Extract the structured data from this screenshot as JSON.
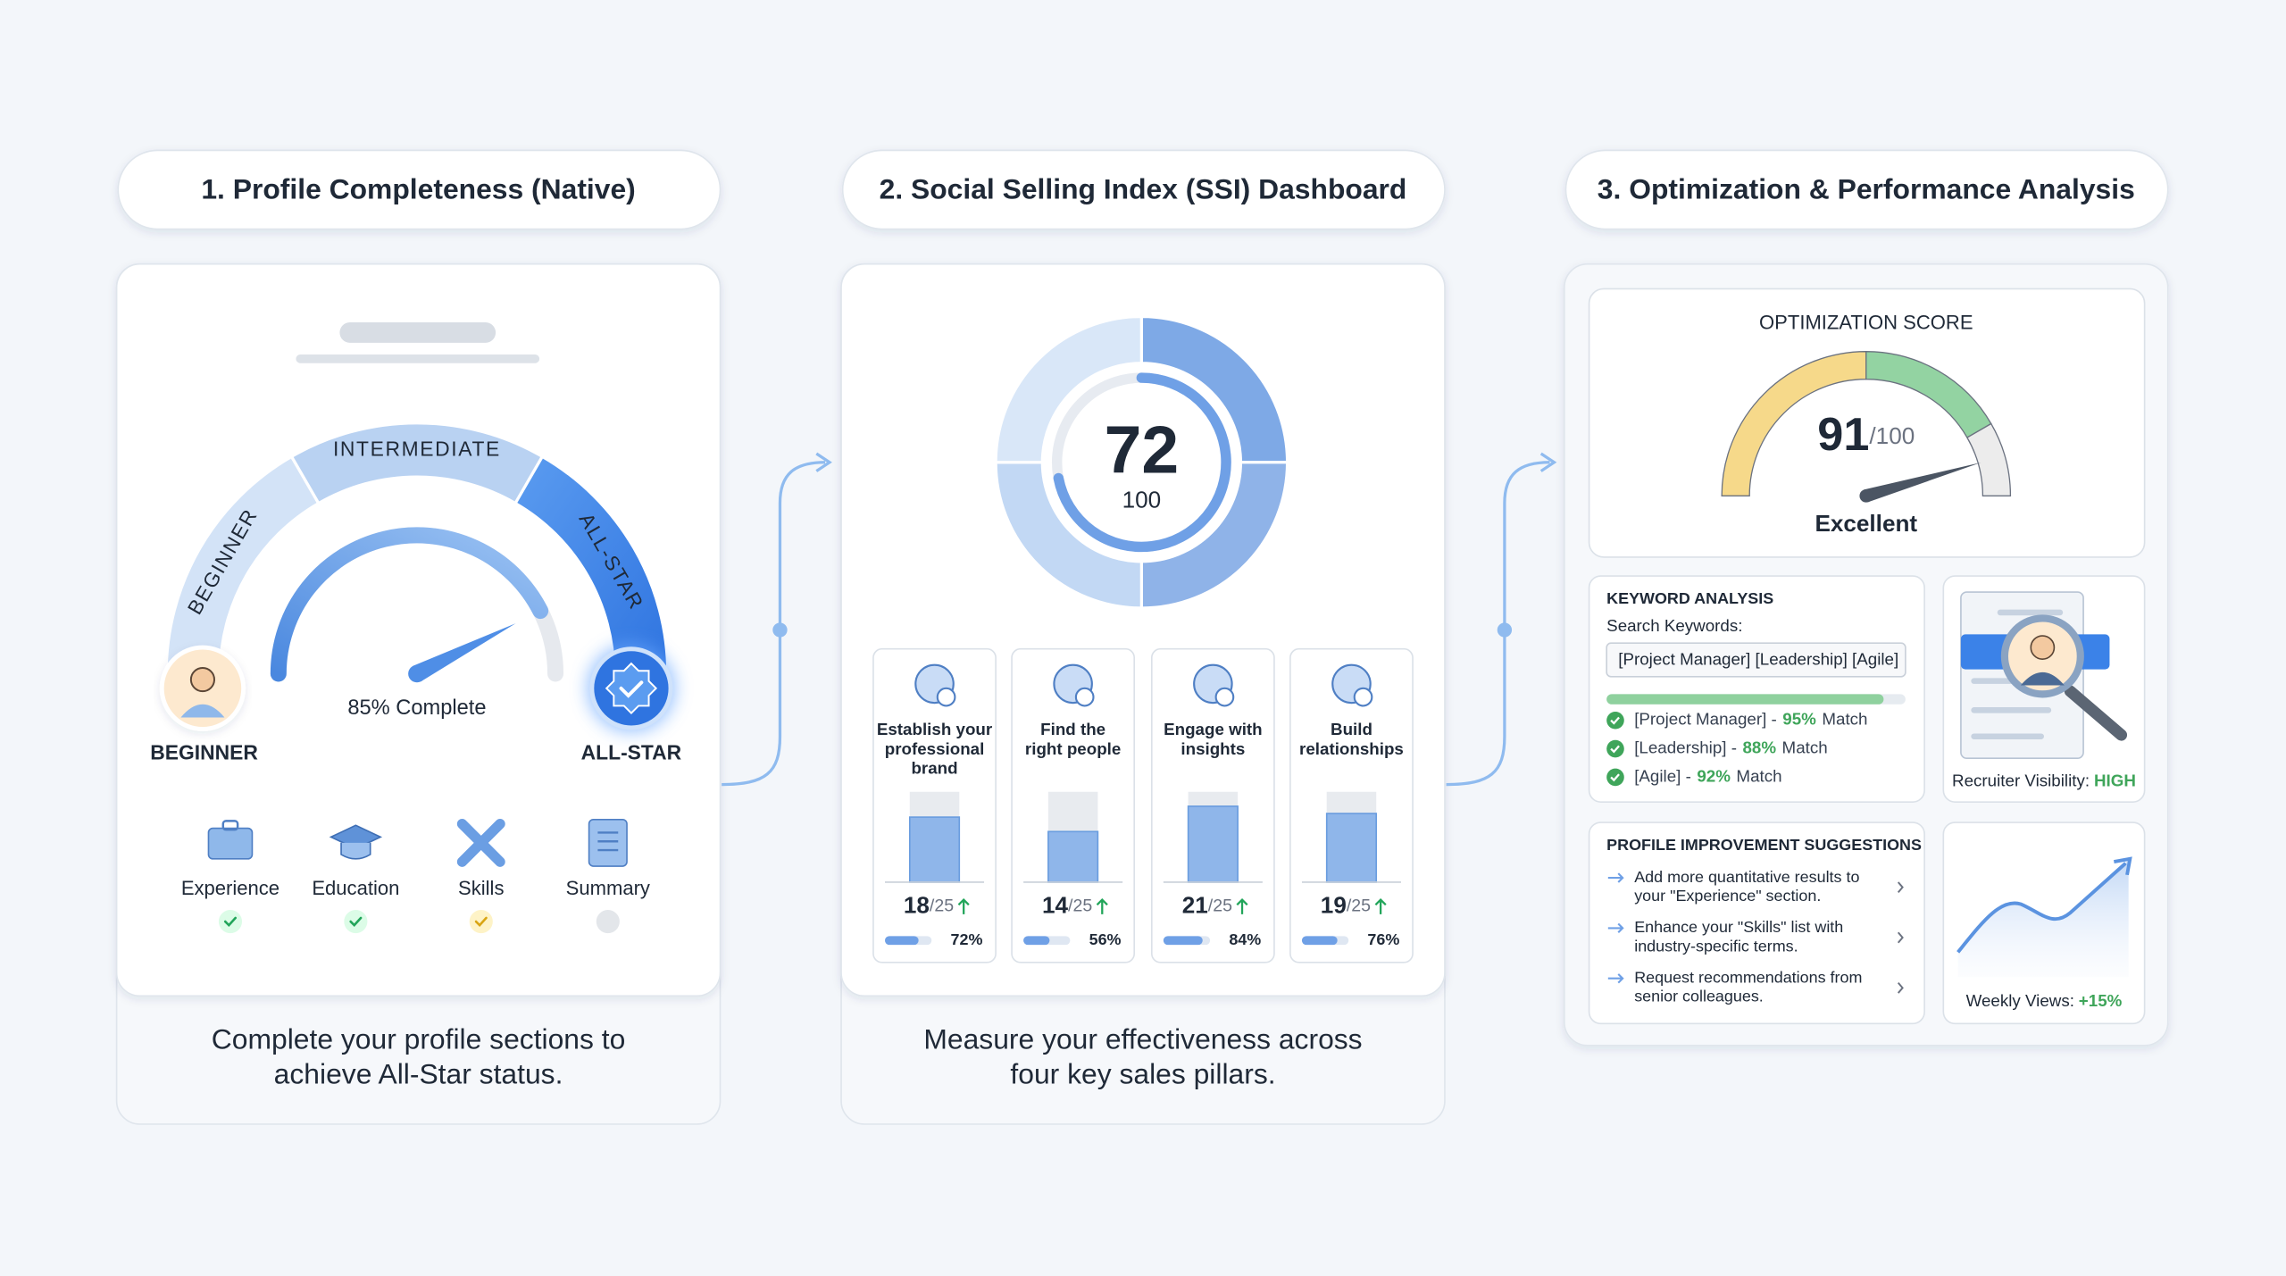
{
  "panels": [
    {
      "title": "1. Profile Completeness (Native)",
      "levels": [
        "BEGINNER",
        "INTERMEDIATE",
        "ALL-STAR"
      ],
      "start_label": "BEGINNER",
      "end_label": "ALL-STAR",
      "progress": {
        "value": 85,
        "label": "85% Complete"
      },
      "sections": [
        {
          "label": "Experience",
          "status": "complete"
        },
        {
          "label": "Education",
          "status": "complete"
        },
        {
          "label": "Skills",
          "status": "partial"
        },
        {
          "label": "Summary",
          "status": "missing"
        }
      ],
      "caption": [
        "Complete your profile sections to",
        "achieve All-Star status."
      ]
    },
    {
      "title": "2. Social Selling Index (SSI) Dashboard",
      "score": 72,
      "score_max": 100,
      "pillars": [
        {
          "name": [
            "Establish your",
            "professional",
            "brand"
          ],
          "score": 18,
          "max": {
            "value": 25,
            "label": "/25"
          },
          "percent": {
            "value": 72,
            "label": "72%"
          }
        },
        {
          "name": [
            "Find the",
            "right people"
          ],
          "score": 14,
          "max": {
            "value": 25,
            "label": "/25"
          },
          "percent": {
            "value": 56,
            "label": "56%"
          }
        },
        {
          "name": [
            "Engage with",
            "insights"
          ],
          "score": 21,
          "max": {
            "value": 25,
            "label": "/25"
          },
          "percent": {
            "value": 84,
            "label": "84%"
          }
        },
        {
          "name": [
            "Build",
            "relationships"
          ],
          "score": 19,
          "max": {
            "value": 25,
            "label": "/25"
          },
          "percent": {
            "value": 76,
            "label": "76%"
          }
        }
      ],
      "caption": [
        "Measure your effectiveness across",
        "four key sales pillars."
      ]
    },
    {
      "title": "3. Optimization & Performance Analysis",
      "score_title": "OPTIMIZATION SCORE",
      "score": 91,
      "score_max": {
        "value": 100,
        "label": "/100"
      },
      "rating": "Excellent",
      "keyword_analysis": {
        "title": "KEYWORD ANALYSIS",
        "prompt": "Search Keywords:",
        "query": "[Project Manager] [Leadership] [Agile]",
        "matches": [
          {
            "keyword": "[Project Manager] -",
            "percent": "95%",
            "suffix": "Match"
          },
          {
            "keyword": "[Leadership] -",
            "percent": "88%",
            "suffix": "Match"
          },
          {
            "keyword": "[Agile] -",
            "percent": "92%",
            "suffix": "Match"
          }
        ]
      },
      "visibility": {
        "label": "Recruiter Visibility:",
        "value": "HIGH"
      },
      "suggestions": {
        "title": "PROFILE IMPROVEMENT SUGGESTIONS",
        "items": [
          [
            "Add more quantitative results to",
            "your \"Experience\" section."
          ],
          [
            "Enhance your \"Skills\" list with",
            "industry-specific terms."
          ],
          [
            "Request recommendations from",
            "senior colleagues."
          ]
        ]
      },
      "views": {
        "label": "Weekly Views:",
        "change": "+15%"
      }
    }
  ]
}
